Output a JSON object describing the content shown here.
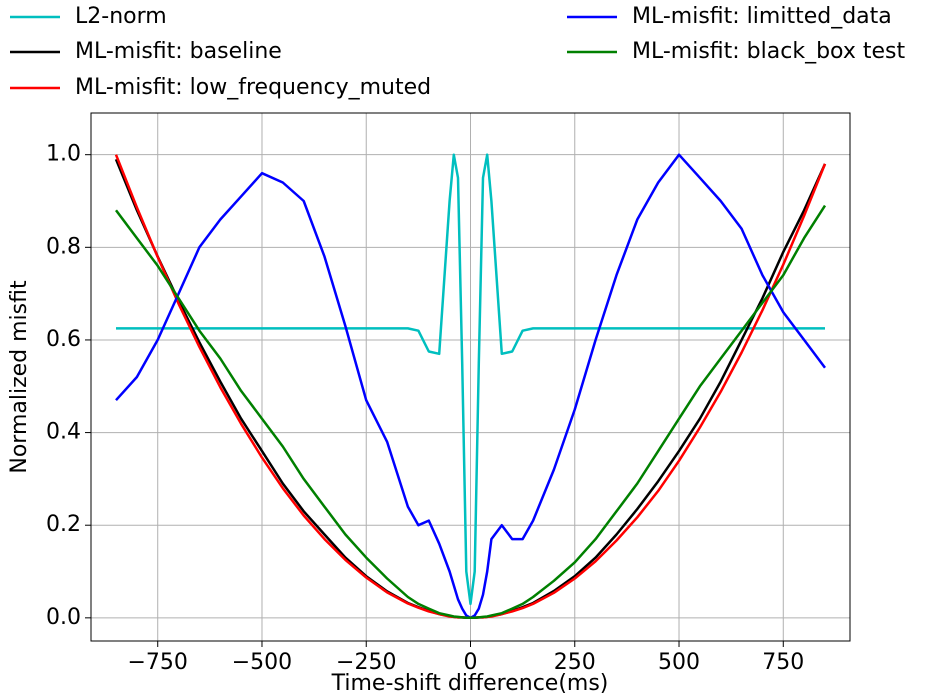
{
  "chart_data": {
    "type": "line",
    "xlabel": "Time-shift difference(ms)",
    "ylabel": "Normalized misfit",
    "xlim": [
      -910,
      910
    ],
    "ylim": [
      -0.05,
      1.09
    ],
    "xticks": [
      {
        "value": -750,
        "label": "−750"
      },
      {
        "value": -500,
        "label": "−500"
      },
      {
        "value": -250,
        "label": "−250"
      },
      0,
      250,
      500,
      750
    ],
    "yticks": [
      {
        "value": 0,
        "label": "0.0"
      },
      0.2,
      0.4,
      0.6,
      0.8,
      {
        "value": 1,
        "label": "1.0"
      }
    ],
    "grid": true,
    "x": [
      -850,
      -800,
      -750,
      -700,
      -650,
      -600,
      -550,
      -500,
      -450,
      -400,
      -350,
      -300,
      -250,
      -200,
      -150,
      -125,
      -100,
      -75,
      -50,
      -40,
      -30,
      -20,
      -10,
      0,
      10,
      20,
      30,
      40,
      50,
      75,
      100,
      125,
      150,
      200,
      250,
      300,
      350,
      400,
      450,
      500,
      550,
      600,
      650,
      700,
      750,
      800,
      850
    ],
    "series": [
      {
        "name": "L2-norm",
        "color": "#00bfbf",
        "values": [
          0.625,
          0.625,
          0.625,
          0.625,
          0.625,
          0.625,
          0.625,
          0.625,
          0.625,
          0.625,
          0.625,
          0.625,
          0.625,
          0.625,
          0.625,
          0.62,
          0.575,
          0.57,
          0.9,
          1.0,
          0.95,
          0.55,
          0.1,
          0.03,
          0.1,
          0.55,
          0.95,
          1.0,
          0.9,
          0.57,
          0.575,
          0.62,
          0.625,
          0.625,
          0.625,
          0.625,
          0.625,
          0.625,
          0.625,
          0.625,
          0.625,
          0.625,
          0.625,
          0.625,
          0.625,
          0.625,
          0.625
        ]
      },
      {
        "name": "ML-misfit: baseline",
        "color": "#000000",
        "values": [
          0.99,
          0.88,
          0.78,
          0.685,
          0.595,
          0.51,
          0.43,
          0.36,
          0.29,
          0.23,
          0.18,
          0.13,
          0.09,
          0.057,
          0.032,
          0.023,
          0.015,
          0.008,
          0.004,
          0.002,
          0.001,
          0.001,
          0,
          0,
          0,
          0.001,
          0.001,
          0.002,
          0.004,
          0.008,
          0.015,
          0.023,
          0.032,
          0.058,
          0.09,
          0.13,
          0.18,
          0.235,
          0.295,
          0.36,
          0.43,
          0.51,
          0.6,
          0.69,
          0.79,
          0.88,
          0.98
        ]
      },
      {
        "name": "ML-misfit: low_frequency_muted",
        "color": "#ff0000",
        "values": [
          1.0,
          0.886,
          0.779,
          0.678,
          0.585,
          0.498,
          0.419,
          0.346,
          0.28,
          0.221,
          0.17,
          0.125,
          0.087,
          0.055,
          0.031,
          0.022,
          0.014,
          0.008,
          0.003,
          0.002,
          0.001,
          0.001,
          0,
          0,
          0,
          0.001,
          0.001,
          0.002,
          0.003,
          0.008,
          0.014,
          0.021,
          0.03,
          0.054,
          0.085,
          0.122,
          0.167,
          0.217,
          0.274,
          0.339,
          0.411,
          0.488,
          0.573,
          0.664,
          0.763,
          0.868,
          0.98
        ]
      },
      {
        "name": "ML-misfit: limitted_data",
        "color": "#0000ff",
        "values": [
          0.47,
          0.52,
          0.6,
          0.7,
          0.8,
          0.86,
          0.91,
          0.96,
          0.94,
          0.9,
          0.78,
          0.63,
          0.47,
          0.38,
          0.24,
          0.2,
          0.21,
          0.16,
          0.1,
          0.07,
          0.04,
          0.02,
          0.005,
          0,
          0.005,
          0.02,
          0.05,
          0.1,
          0.17,
          0.2,
          0.17,
          0.17,
          0.21,
          0.32,
          0.45,
          0.6,
          0.74,
          0.86,
          0.94,
          1.0,
          0.95,
          0.9,
          0.84,
          0.74,
          0.66,
          0.6,
          0.54
        ]
      },
      {
        "name": "ML-misfit: black_box test",
        "color": "#008000",
        "values": [
          0.88,
          0.82,
          0.76,
          0.69,
          0.62,
          0.56,
          0.49,
          0.43,
          0.37,
          0.3,
          0.24,
          0.18,
          0.13,
          0.085,
          0.045,
          0.03,
          0.02,
          0.01,
          0.005,
          0.003,
          0.002,
          0.001,
          0,
          0,
          0,
          0.001,
          0.002,
          0.003,
          0.005,
          0.01,
          0.02,
          0.03,
          0.045,
          0.08,
          0.12,
          0.17,
          0.23,
          0.29,
          0.36,
          0.43,
          0.5,
          0.56,
          0.62,
          0.68,
          0.74,
          0.82,
          0.89
        ]
      }
    ]
  }
}
